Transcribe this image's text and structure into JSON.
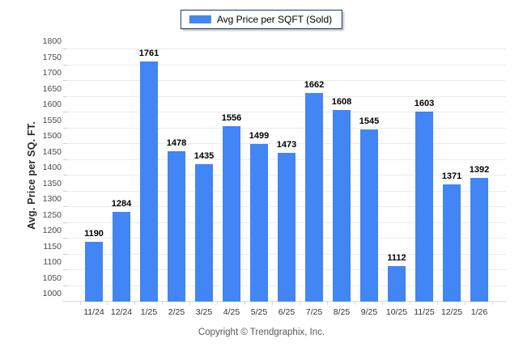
{
  "chart_data": {
    "type": "bar",
    "title": "Avg Price per SQFT (Sold)",
    "categories": [
      "11/24",
      "12/24",
      "1/25",
      "2/25",
      "3/25",
      "4/25",
      "5/25",
      "6/25",
      "7/25",
      "8/25",
      "9/25",
      "10/25",
      "11/25",
      "12/25",
      "1/26"
    ],
    "values": [
      1190,
      1284,
      1761,
      1478,
      1435,
      1556,
      1499,
      1473,
      1662,
      1608,
      1545,
      1112,
      1603,
      1371,
      1392
    ],
    "xlabel": "",
    "ylabel": "Avg. Price per SQ. FT.",
    "ylim": [
      1000,
      1800
    ],
    "ytick_step": 50,
    "grid": true,
    "legend_position": "top",
    "bar_color": "#4285f4"
  },
  "legend": {
    "label": "Avg Price per SQFT (Sold)"
  },
  "footer": {
    "text": "Copyright © Trendgraphix, Inc."
  },
  "colors": {
    "bar": "#4285f4",
    "legend_border": "#1b3a5e",
    "grid": "#ebebeb",
    "axis_line": "#d9d9d9",
    "tick_text": "#4a4a4a"
  }
}
